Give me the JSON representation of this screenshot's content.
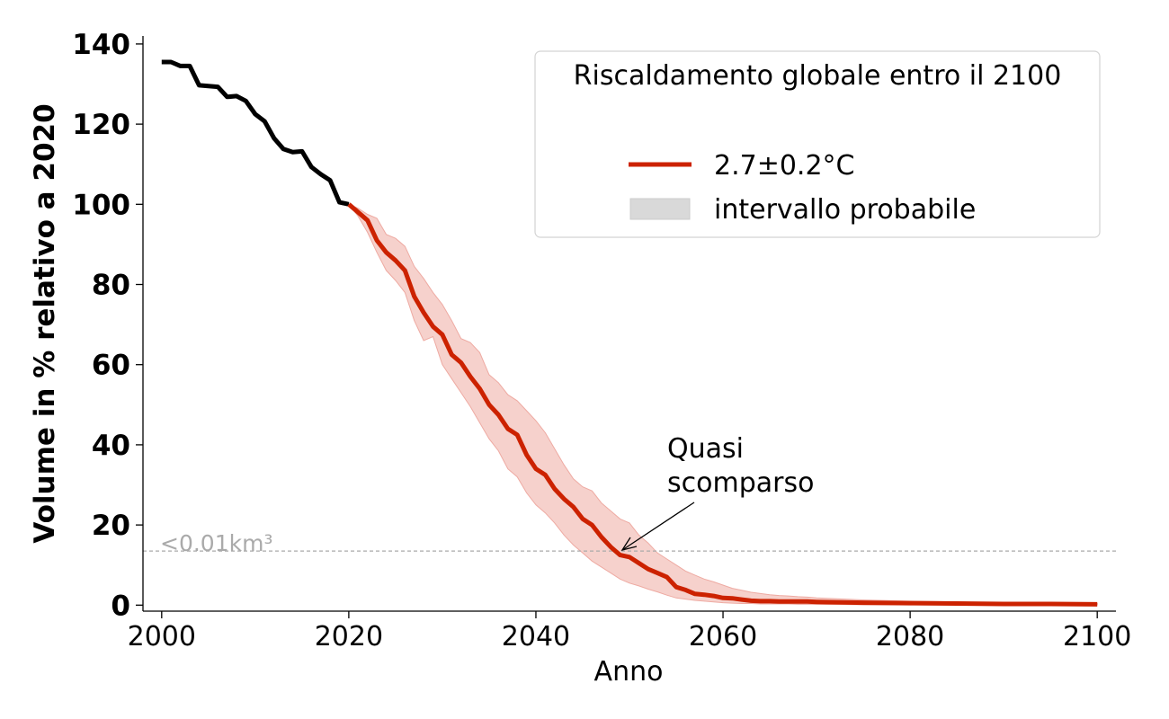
{
  "chart_data": {
    "type": "line",
    "xlabel": "Anno",
    "ylabel": "Volume in % relativo a 2020",
    "xlim": [
      1998,
      2102
    ],
    "ylim": [
      -1.5,
      142
    ],
    "xticks": [
      2000,
      2020,
      2040,
      2060,
      2080,
      2100
    ],
    "yticks": [
      0,
      20,
      40,
      60,
      80,
      100,
      120,
      140
    ],
    "grid": false,
    "legend": {
      "title": "Riscaldamento globale entro il 2100",
      "placement": "top-right",
      "entries": [
        {
          "label": "2.7±0.2°C",
          "kind": "line",
          "color": "#cc2200"
        },
        {
          "label": "intervallo probabile",
          "kind": "patch",
          "color": "#d9d9d9"
        }
      ]
    },
    "threshold": {
      "y": 13.5,
      "label": "<0.01km³",
      "color": "#aaaaaa"
    },
    "annotation": {
      "text_lines": [
        "Quasi",
        "scomparso"
      ],
      "x": 2049,
      "y": 13.5,
      "text_x": 2054,
      "text_y": 30
    },
    "series": [
      {
        "kind": "historical",
        "color": "#000000",
        "x": [
          2000,
          2001,
          2002,
          2003,
          2004,
          2005,
          2006,
          2007,
          2008,
          2009,
          2010,
          2011,
          2012,
          2013,
          2014,
          2015,
          2016,
          2017,
          2018,
          2019,
          2020
        ],
        "y": [
          135.5,
          135.5,
          134.5,
          134.5,
          129.7,
          129.5,
          129.3,
          126.8,
          127.0,
          125.8,
          122.5,
          120.7,
          116.5,
          113.8,
          113.0,
          113.2,
          109.3,
          107.5,
          106.0,
          100.5,
          100.0
        ]
      },
      {
        "kind": "projection",
        "name": "2.7±0.2°C",
        "color": "#cc2200",
        "band_color": "#f5c9c3",
        "band_edge": "#eeaaa2",
        "x": [
          2020,
          2021,
          2022,
          2023,
          2024,
          2025,
          2026,
          2027,
          2028,
          2029,
          2030,
          2031,
          2032,
          2033,
          2034,
          2035,
          2036,
          2037,
          2038,
          2039,
          2040,
          2041,
          2042,
          2043,
          2044,
          2045,
          2046,
          2047,
          2048,
          2049,
          2050,
          2051,
          2052,
          2053,
          2054,
          2055,
          2056,
          2057,
          2058,
          2059,
          2060,
          2061,
          2062,
          2063,
          2064,
          2065,
          2066,
          2067,
          2068,
          2069,
          2070,
          2075,
          2080,
          2085,
          2090,
          2095,
          2100
        ],
        "y": [
          100.0,
          98.0,
          96.0,
          91.0,
          88.0,
          86.0,
          83.5,
          77.0,
          73.0,
          69.5,
          67.5,
          62.5,
          60.5,
          57.0,
          54.0,
          50.0,
          47.5,
          44.0,
          42.5,
          37.5,
          34.0,
          32.5,
          29.0,
          26.5,
          24.5,
          21.5,
          20.0,
          17.0,
          14.5,
          12.5,
          12.0,
          10.5,
          9.0,
          8.0,
          7.0,
          4.5,
          3.8,
          2.8,
          2.6,
          2.3,
          1.8,
          1.7,
          1.4,
          1.1,
          1.0,
          1.0,
          0.9,
          0.9,
          0.9,
          0.9,
          0.8,
          0.6,
          0.5,
          0.4,
          0.3,
          0.3,
          0.2
        ],
        "upper": [
          100.0,
          99.0,
          97.5,
          96.5,
          92.5,
          91.5,
          89.5,
          84.5,
          81.5,
          78.0,
          75.0,
          71.0,
          66.5,
          65.5,
          63.0,
          57.5,
          55.5,
          52.5,
          51.0,
          48.5,
          46.0,
          43.0,
          39.0,
          35.0,
          31.5,
          29.5,
          28.5,
          25.5,
          23.5,
          21.5,
          20.5,
          17.5,
          15.5,
          13.0,
          11.5,
          10.0,
          8.5,
          7.5,
          6.5,
          5.8,
          5.0,
          4.2,
          3.7,
          3.2,
          2.9,
          2.6,
          2.4,
          2.3,
          2.1,
          2.0,
          1.8,
          1.3,
          1.0,
          0.8,
          0.6,
          0.5,
          0.4
        ],
        "lower": [
          100.0,
          97.0,
          93.0,
          88.0,
          83.5,
          81.0,
          78.0,
          71.0,
          66.0,
          67.0,
          60.0,
          56.5,
          53.0,
          49.5,
          45.5,
          41.5,
          38.5,
          34.0,
          32.0,
          28.0,
          25.0,
          23.0,
          20.5,
          17.5,
          15.0,
          13.0,
          11.0,
          9.5,
          8.0,
          6.5,
          5.5,
          4.8,
          4.0,
          3.3,
          2.5,
          1.8,
          1.5,
          1.2,
          1.0,
          0.8,
          0.6,
          0.5,
          0.4,
          0.4,
          0.3,
          0.3,
          0.3,
          0.3,
          0.2,
          0.2,
          0.2,
          0.1,
          0.1,
          0.1,
          0.1,
          0.1,
          0.1
        ]
      }
    ]
  }
}
